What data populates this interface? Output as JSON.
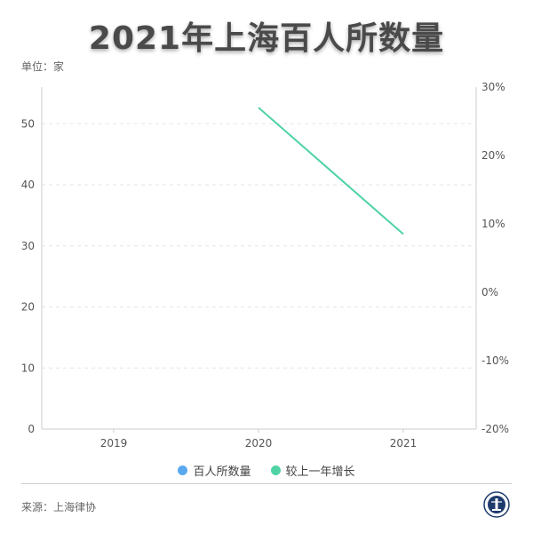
{
  "title": "2021年上海百人所数量",
  "unit_label": "单位：家",
  "source": "来源：上海律协",
  "colors": {
    "series1": "#5aa9ee",
    "series2": "#4fd3a4",
    "axis": "#cccccc",
    "grid": "#e6e6e6"
  },
  "logo_icon": "law-association-seal-icon",
  "chart_data": {
    "type": "line",
    "categories": [
      "2019",
      "2020",
      "2021"
    ],
    "y_left": {
      "min": 0,
      "max": 56,
      "ticks": [
        0,
        10,
        20,
        30,
        40,
        50
      ]
    },
    "y_right": {
      "min": -20,
      "max": 30,
      "ticks": [
        "-20%",
        "-10%",
        "0%",
        "10%",
        "20%",
        "30%"
      ],
      "tick_values": [
        -20,
        -10,
        0,
        10,
        20,
        30
      ]
    },
    "grid": true,
    "legend_position": "bottom",
    "series": [
      {
        "name": "百人所数量",
        "axis": "left",
        "color": "#5aa9ee",
        "values": [
          null,
          null,
          null
        ]
      },
      {
        "name": "较上一年增长",
        "axis": "right",
        "color": "#4fd3a4",
        "values": [
          null,
          27,
          8.5
        ]
      }
    ]
  }
}
